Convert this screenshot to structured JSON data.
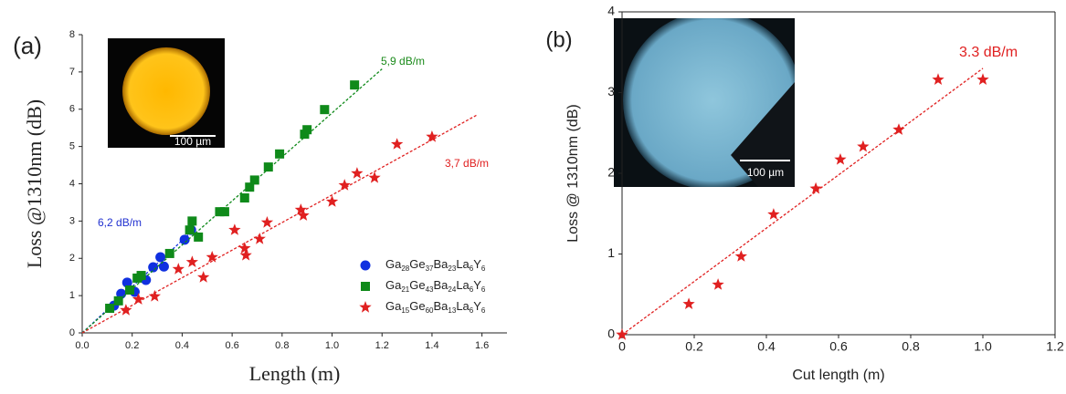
{
  "chart_data": [
    {
      "type": "scatter",
      "panel_label": "(a)",
      "inset_label": "100 µm",
      "xlabel": "Length (m)",
      "ylabel": "Loss @1310nm (dB)",
      "xlim": [
        0,
        1.7
      ],
      "ylim": [
        0,
        8
      ],
      "xticks": [
        {
          "value": 0,
          "label": "0.0"
        },
        0.2,
        0.4,
        0.6,
        0.8,
        {
          "value": 1,
          "label": "1.0"
        },
        1.2,
        1.4,
        1.6
      ],
      "yticks": [
        0,
        1,
        2,
        3,
        4,
        5,
        6,
        7,
        8
      ],
      "legend": "lower right",
      "annotations": [
        {
          "text": "6,2 dB/m",
          "color": "#2030d0"
        },
        {
          "text": "5,9 dB/m",
          "color": "#1a8a1a"
        },
        {
          "text": "3,7 dB/m",
          "color": "#e02020"
        }
      ],
      "series": [
        {
          "name": "Ga28Ge37Ba23La6Y6",
          "color": "#1030e0",
          "marker": "circle",
          "x": [
            0.127,
            0.156,
            0.18,
            0.21,
            0.255,
            0.284,
            0.313,
            0.327,
            0.41,
            0.436
          ],
          "values": [
            0.73,
            1.05,
            1.35,
            1.1,
            1.42,
            1.76,
            2.03,
            1.78,
            2.5,
            2.76
          ],
          "fit_slope": 6.2,
          "fit_xlim": [
            0,
            0.45
          ]
        },
        {
          "name": "Ga21Ge43Ba24La6Y6",
          "color": "#0f8a1a",
          "marker": "square",
          "x": [
            0.11,
            0.145,
            0.19,
            0.22,
            0.236,
            0.35,
            0.43,
            0.44,
            0.465,
            0.55,
            0.57,
            0.65,
            0.67,
            0.69,
            0.745,
            0.79,
            0.89,
            0.9,
            0.97,
            1.09
          ],
          "values": [
            0.66,
            0.86,
            1.15,
            1.47,
            1.54,
            2.13,
            2.76,
            3.0,
            2.57,
            3.25,
            3.25,
            3.62,
            3.91,
            4.1,
            4.45,
            4.8,
            5.33,
            5.45,
            5.99,
            6.65
          ],
          "fit_slope": 5.9,
          "fit_xlim": [
            0,
            1.2
          ]
        },
        {
          "name": "Ga15Ge60Ba13La6Y6",
          "color": "#e02020",
          "marker": "star",
          "x": [
            0.175,
            0.225,
            0.29,
            0.385,
            0.44,
            0.485,
            0.52,
            0.61,
            0.65,
            0.655,
            0.71,
            0.74,
            0.875,
            0.885,
            1.0,
            1.05,
            1.1,
            1.17,
            1.26,
            1.4
          ],
          "values": [
            0.61,
            0.9,
            0.98,
            1.71,
            1.9,
            1.49,
            2.03,
            2.76,
            2.27,
            2.08,
            2.52,
            2.96,
            3.3,
            3.15,
            3.52,
            3.96,
            4.28,
            4.16,
            5.06,
            5.26
          ],
          "fit_slope": 3.7,
          "fit_xlim": [
            0,
            1.58
          ]
        }
      ]
    },
    {
      "type": "scatter",
      "panel_label": "(b)",
      "inset_label": "100 µm",
      "xlabel": "Cut length (m)",
      "ylabel": "Loss @ 1310nm (dB)",
      "xlim": [
        0,
        1.2
      ],
      "ylim": [
        0,
        4
      ],
      "xticks": [
        0,
        0.2,
        0.4,
        0.6,
        0.8,
        {
          "value": 1,
          "label": "1.0"
        },
        1.2
      ],
      "yticks": [
        0,
        1,
        2,
        3,
        4
      ],
      "annotations": [
        {
          "text": "3.3 dB/m",
          "color": "#e02020"
        }
      ],
      "series": [
        {
          "color": "#e02020",
          "marker": "star",
          "x": [
            0,
            0.185,
            0.266,
            0.33,
            0.42,
            0.537,
            0.605,
            0.668,
            0.767,
            0.876,
            1.0
          ],
          "values": [
            0,
            0.38,
            0.62,
            0.97,
            1.49,
            1.81,
            2.17,
            2.33,
            2.54,
            3.16,
            3.16
          ],
          "fit_slope": 3.3,
          "fit_xlim": [
            0,
            1.0
          ]
        }
      ]
    }
  ]
}
